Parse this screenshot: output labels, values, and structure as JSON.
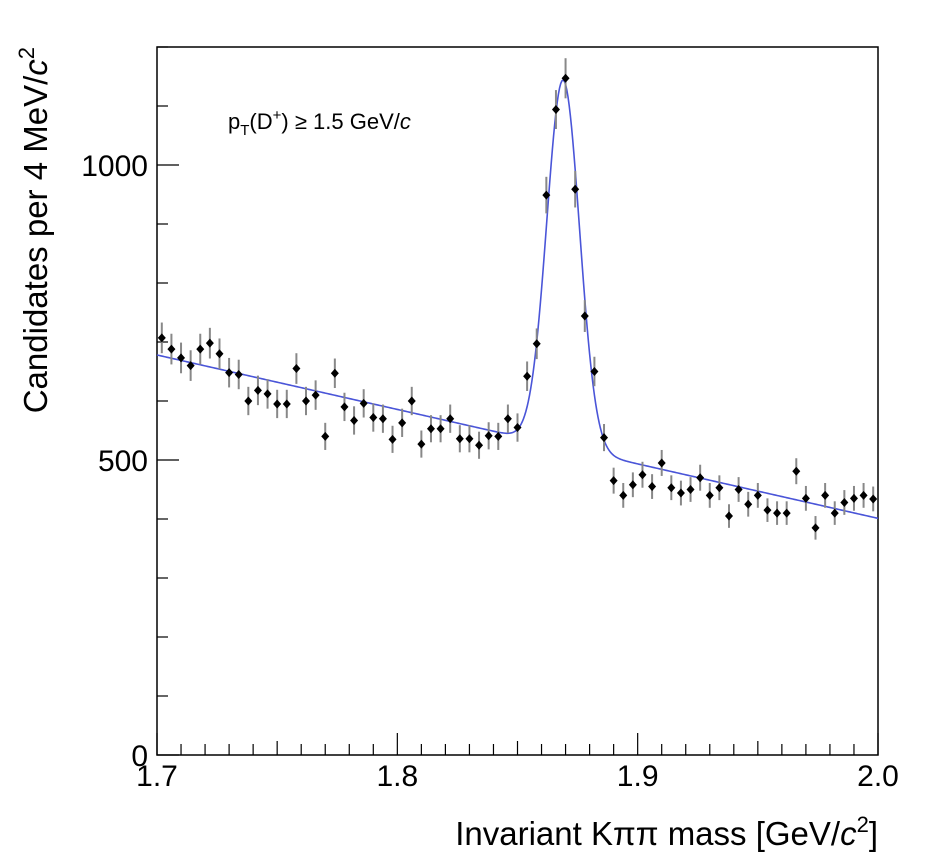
{
  "chart_data": {
    "type": "scatter",
    "title": "",
    "xlabel": "Invariant Kππ mass [GeV/c²]",
    "xlabel_parts": {
      "main": "Invariant Kππ mass [GeV/",
      "var": "c",
      "sup": "2",
      "end": "]"
    },
    "ylabel": "Candidates per 4 MeV/c²",
    "ylabel_parts": {
      "main": "Candidates per 4 MeV/",
      "var": "c",
      "sup": "2"
    },
    "annotation": "p_T(D+) ≥ 1.5 GeV/c",
    "annotation_parts": {
      "p": "p",
      "sub": "T",
      "mid": "(D",
      "sup": "+",
      "end": ") ≥ 1.5 GeV/",
      "var": "c"
    },
    "xlim": [
      1.7,
      2.0
    ],
    "ylim": [
      0,
      1200
    ],
    "x_ticks": [
      {
        "value": 1.7,
        "label": "1.7"
      },
      {
        "value": 1.8,
        "label": "1.8"
      },
      {
        "value": 1.9,
        "label": "1.9"
      },
      {
        "value": 2.0,
        "label": "2.0"
      }
    ],
    "y_ticks": [
      {
        "value": 0,
        "label": "0"
      },
      {
        "value": 500,
        "label": "500"
      },
      {
        "value": 1000,
        "label": "1000"
      }
    ],
    "x_minor_step": 0.01,
    "y_minor_step": 100,
    "grid": false,
    "fit_color": "#4a55d8",
    "marker_color": "#000000",
    "errorbar_color": "#888888",
    "fit": {
      "background": {
        "a": 678,
        "slope_per_GeV": -923,
        "x0": 1.7
      },
      "signal": {
        "amplitude": 622,
        "mean": 1.869,
        "sigma": 0.0068
      }
    },
    "series": [
      {
        "name": "data",
        "x": [
          1.702,
          1.706,
          1.71,
          1.714,
          1.718,
          1.722,
          1.726,
          1.73,
          1.734,
          1.738,
          1.742,
          1.746,
          1.75,
          1.754,
          1.758,
          1.762,
          1.766,
          1.77,
          1.774,
          1.778,
          1.782,
          1.786,
          1.79,
          1.794,
          1.798,
          1.802,
          1.806,
          1.81,
          1.814,
          1.818,
          1.822,
          1.826,
          1.83,
          1.834,
          1.838,
          1.842,
          1.846,
          1.85,
          1.854,
          1.858,
          1.862,
          1.866,
          1.87,
          1.874,
          1.878,
          1.882,
          1.886,
          1.89,
          1.894,
          1.898,
          1.902,
          1.906,
          1.91,
          1.914,
          1.918,
          1.922,
          1.926,
          1.93,
          1.934,
          1.938,
          1.942,
          1.946,
          1.95,
          1.954,
          1.958,
          1.962,
          1.966,
          1.97,
          1.974,
          1.978,
          1.982,
          1.986,
          1.99,
          1.994,
          1.998
        ],
        "y": [
          707,
          688,
          673,
          660,
          688,
          698,
          680,
          648,
          645,
          600,
          618,
          612,
          595,
          595,
          655,
          600,
          610,
          540,
          647,
          590,
          567,
          596,
          572,
          570,
          535,
          563,
          600,
          527,
          553,
          553,
          570,
          536,
          536,
          525,
          541,
          540,
          570,
          555,
          642,
          697,
          949,
          1094,
          1147,
          959,
          744,
          650,
          538,
          465,
          440,
          458,
          475,
          455,
          495,
          453,
          444,
          450,
          470,
          440,
          453,
          405,
          450,
          425,
          440,
          415,
          410,
          410,
          481,
          435,
          385,
          440,
          410,
          428,
          435,
          440,
          434
        ],
        "err": [
          26,
          26,
          26,
          26,
          26,
          26,
          26,
          25,
          25,
          24,
          25,
          25,
          24,
          24,
          26,
          24,
          25,
          23,
          25,
          24,
          24,
          24,
          24,
          24,
          23,
          24,
          24,
          23,
          23,
          23,
          24,
          23,
          23,
          23,
          23,
          23,
          24,
          24,
          25,
          26,
          31,
          33,
          34,
          31,
          27,
          25,
          23,
          22,
          21,
          21,
          22,
          21,
          22,
          21,
          21,
          21,
          22,
          21,
          21,
          20,
          21,
          21,
          21,
          20,
          20,
          20,
          22,
          21,
          20,
          21,
          20,
          21,
          21,
          21,
          21
        ]
      }
    ]
  }
}
